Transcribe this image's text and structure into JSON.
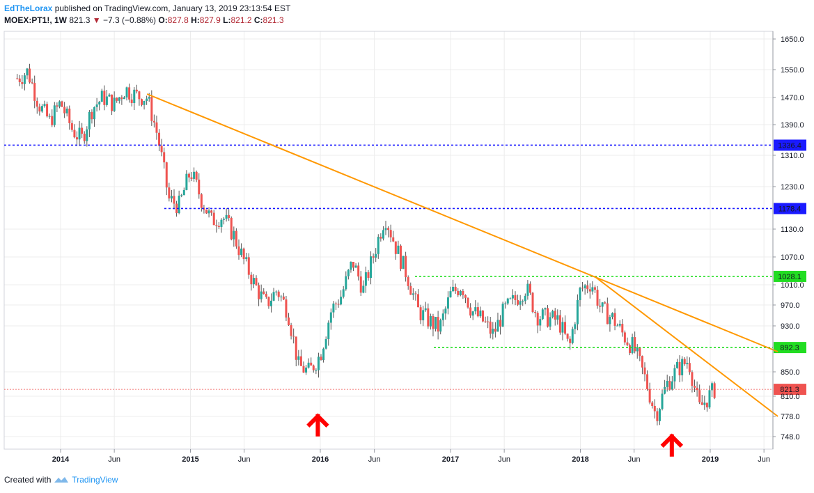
{
  "header": {
    "author": "EdTheLorax",
    "published_text": "published on TradingView.com, January 13, 2019 23:13:54 EST",
    "symbol": "MOEX:PT1!, 1W",
    "last": "821.3",
    "change": "−7.3 (−0.88%)",
    "o_label": "O:",
    "o_value": "827.8",
    "h_label": "H:",
    "h_value": "827.9",
    "l_label": "L:",
    "l_value": "821.2",
    "c_label": "C:",
    "c_value": "821.3"
  },
  "footer": {
    "created_with": "Created with",
    "brand": "TradingView"
  },
  "colors": {
    "up": "#26a69a",
    "down": "#ef5350",
    "wick": "#555555",
    "trendline": "#ff9800",
    "resistance": "#1a1aff",
    "support": "#22dd22",
    "last_price": "#ef5350",
    "arrow": "#ff0000",
    "grid": "#ececec"
  },
  "chart_data": {
    "type": "candlestick",
    "y_axis": {
      "ticks": [
        "1650.0",
        "1550.0",
        "1470.0",
        "1390.0",
        "1310.0",
        "1230.0",
        "1130.0",
        "1070.0",
        "1010.0",
        "970.0",
        "930.0",
        "850.0",
        "810.0",
        "778.0",
        "748.0"
      ],
      "tick_values": [
        1650,
        1550,
        1470,
        1390,
        1310,
        1230,
        1130,
        1070,
        1010,
        970,
        930,
        850,
        810,
        778,
        748
      ]
    },
    "x_axis": {
      "ticks": [
        "2014",
        "Jun",
        "2015",
        "Jun",
        "2016",
        "Jun",
        "2017",
        "Jun",
        "2018",
        "Jun",
        "2019",
        "Jun"
      ],
      "tick_dates": [
        "2014-01-01",
        "2014-06-01",
        "2015-01-01",
        "2015-06-01",
        "2016-01-01",
        "2016-06-01",
        "2017-01-01",
        "2017-06-01",
        "2018-01-01",
        "2018-06-01",
        "2019-01-01",
        "2019-06-01"
      ]
    },
    "horizontal_levels": [
      {
        "value": 1336.4,
        "label": "1336.4",
        "style": "dotted",
        "color": "resistance"
      },
      {
        "value": 1178.4,
        "label": "1178.4",
        "style": "dotted",
        "color": "resistance"
      },
      {
        "value": 1028.1,
        "label": "1028.1",
        "style": "dotted",
        "color": "support"
      },
      {
        "value": 892.3,
        "label": "892.3",
        "style": "dotted",
        "color": "support"
      },
      {
        "value": 821.3,
        "label": "821.3",
        "style": "last",
        "color": "last_price"
      }
    ],
    "trendlines": [
      {
        "from": {
          "date": "2014-09-01",
          "value": 1480
        },
        "to": {
          "date": "2019-07-10",
          "value": 885
        }
      },
      {
        "from": {
          "date": "2018-02-10",
          "value": 1028
        },
        "to": {
          "date": "2019-07-10",
          "value": 778
        }
      }
    ],
    "markers": [
      {
        "type": "arrow-up",
        "date": "2015-12-25",
        "value": 770
      },
      {
        "type": "arrow-up",
        "date": "2018-09-15",
        "value": 740
      }
    ],
    "weekly_close": [
      {
        "date": "2013-09-01",
        "close": 1525
      },
      {
        "date": "2013-10-01",
        "close": 1545
      },
      {
        "date": "2013-11-01",
        "close": 1450
      },
      {
        "date": "2013-12-01",
        "close": 1400
      },
      {
        "date": "2014-01-01",
        "close": 1455
      },
      {
        "date": "2014-02-01",
        "close": 1380
      },
      {
        "date": "2014-03-01",
        "close": 1350
      },
      {
        "date": "2014-04-01",
        "close": 1440
      },
      {
        "date": "2014-05-01",
        "close": 1470
      },
      {
        "date": "2014-06-01",
        "close": 1450
      },
      {
        "date": "2014-07-01",
        "close": 1495
      },
      {
        "date": "2014-08-01",
        "close": 1475
      },
      {
        "date": "2014-09-01",
        "close": 1470
      },
      {
        "date": "2014-10-01",
        "close": 1360
      },
      {
        "date": "2014-11-01",
        "close": 1200
      },
      {
        "date": "2014-12-01",
        "close": 1185
      },
      {
        "date": "2015-01-01",
        "close": 1270
      },
      {
        "date": "2015-02-01",
        "close": 1200
      },
      {
        "date": "2015-03-01",
        "close": 1150
      },
      {
        "date": "2015-04-01",
        "close": 1160
      },
      {
        "date": "2015-05-01",
        "close": 1120
      },
      {
        "date": "2015-06-01",
        "close": 1060
      },
      {
        "date": "2015-07-01",
        "close": 1010
      },
      {
        "date": "2015-08-01",
        "close": 970
      },
      {
        "date": "2015-09-01",
        "close": 1000
      },
      {
        "date": "2015-10-01",
        "close": 960
      },
      {
        "date": "2015-11-01",
        "close": 860
      },
      {
        "date": "2015-12-01",
        "close": 850
      },
      {
        "date": "2016-01-01",
        "close": 880
      },
      {
        "date": "2016-02-01",
        "close": 960
      },
      {
        "date": "2016-03-01",
        "close": 990
      },
      {
        "date": "2016-04-01",
        "close": 1060
      },
      {
        "date": "2016-05-01",
        "close": 1000
      },
      {
        "date": "2016-06-01",
        "close": 1080
      },
      {
        "date": "2016-07-01",
        "close": 1160
      },
      {
        "date": "2016-08-01",
        "close": 1090
      },
      {
        "date": "2016-09-01",
        "close": 1030
      },
      {
        "date": "2016-10-01",
        "close": 960
      },
      {
        "date": "2016-11-01",
        "close": 940
      },
      {
        "date": "2016-12-01",
        "close": 925
      },
      {
        "date": "2017-01-01",
        "close": 990
      },
      {
        "date": "2017-02-01",
        "close": 1010
      },
      {
        "date": "2017-03-01",
        "close": 960
      },
      {
        "date": "2017-04-01",
        "close": 940
      },
      {
        "date": "2017-05-01",
        "close": 915
      },
      {
        "date": "2017-06-01",
        "close": 960
      },
      {
        "date": "2017-07-01",
        "close": 980
      },
      {
        "date": "2017-08-01",
        "close": 1005
      },
      {
        "date": "2017-09-01",
        "close": 950
      },
      {
        "date": "2017-10-01",
        "close": 945
      },
      {
        "date": "2017-11-01",
        "close": 940
      },
      {
        "date": "2017-12-01",
        "close": 890
      },
      {
        "date": "2018-01-01",
        "close": 1000
      },
      {
        "date": "2018-02-01",
        "close": 1015
      },
      {
        "date": "2018-03-01",
        "close": 960
      },
      {
        "date": "2018-04-01",
        "close": 945
      },
      {
        "date": "2018-05-01",
        "close": 915
      },
      {
        "date": "2018-06-01",
        "close": 890
      },
      {
        "date": "2018-07-01",
        "close": 840
      },
      {
        "date": "2018-08-01",
        "close": 780
      },
      {
        "date": "2018-09-01",
        "close": 830
      },
      {
        "date": "2018-10-01",
        "close": 855
      },
      {
        "date": "2018-11-01",
        "close": 870
      },
      {
        "date": "2018-12-01",
        "close": 790
      },
      {
        "date": "2019-01-13",
        "close": 821.3
      }
    ]
  }
}
